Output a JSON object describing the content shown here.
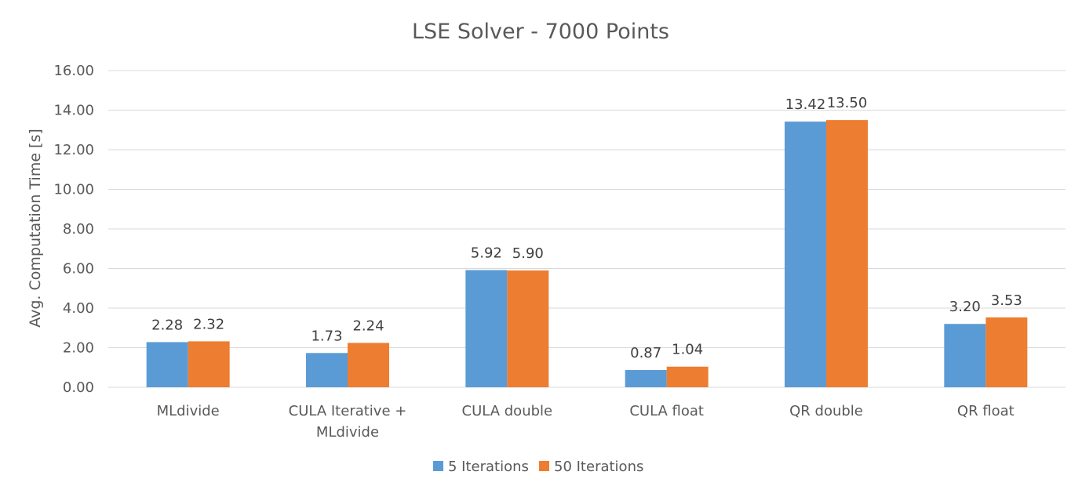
{
  "chart_data": {
    "type": "bar",
    "title": "LSE Solver  - 7000 Points",
    "xlabel": "",
    "ylabel": "Avg. Computation Time [s]",
    "ylim": [
      0,
      16
    ],
    "ytick_step": 2,
    "ytick_labels": [
      "0.00",
      "2.00",
      "4.00",
      "6.00",
      "8.00",
      "10.00",
      "12.00",
      "14.00",
      "16.00"
    ],
    "categories": [
      [
        "MLdivide"
      ],
      [
        "CULA Iterative +",
        "MLdivide"
      ],
      [
        "CULA double"
      ],
      [
        "CULA float"
      ],
      [
        "QR double"
      ],
      [
        "QR float"
      ]
    ],
    "series": [
      {
        "name": "5 Iterations",
        "color": "#5b9bd5",
        "values": [
          2.28,
          1.73,
          5.92,
          0.87,
          13.42,
          3.2
        ],
        "labels": [
          "2.28",
          "1.73",
          "5.92",
          "0.87",
          "13.42",
          "3.20"
        ]
      },
      {
        "name": "50 Iterations",
        "color": "#ed7d31",
        "values": [
          2.32,
          2.24,
          5.9,
          1.04,
          13.5,
          3.53
        ],
        "labels": [
          "2.32",
          "2.24",
          "5.90",
          "1.04",
          "13.50",
          "3.53"
        ]
      }
    ],
    "grid": true,
    "gridColor": "#d9d9d9",
    "legend": "bottom"
  }
}
